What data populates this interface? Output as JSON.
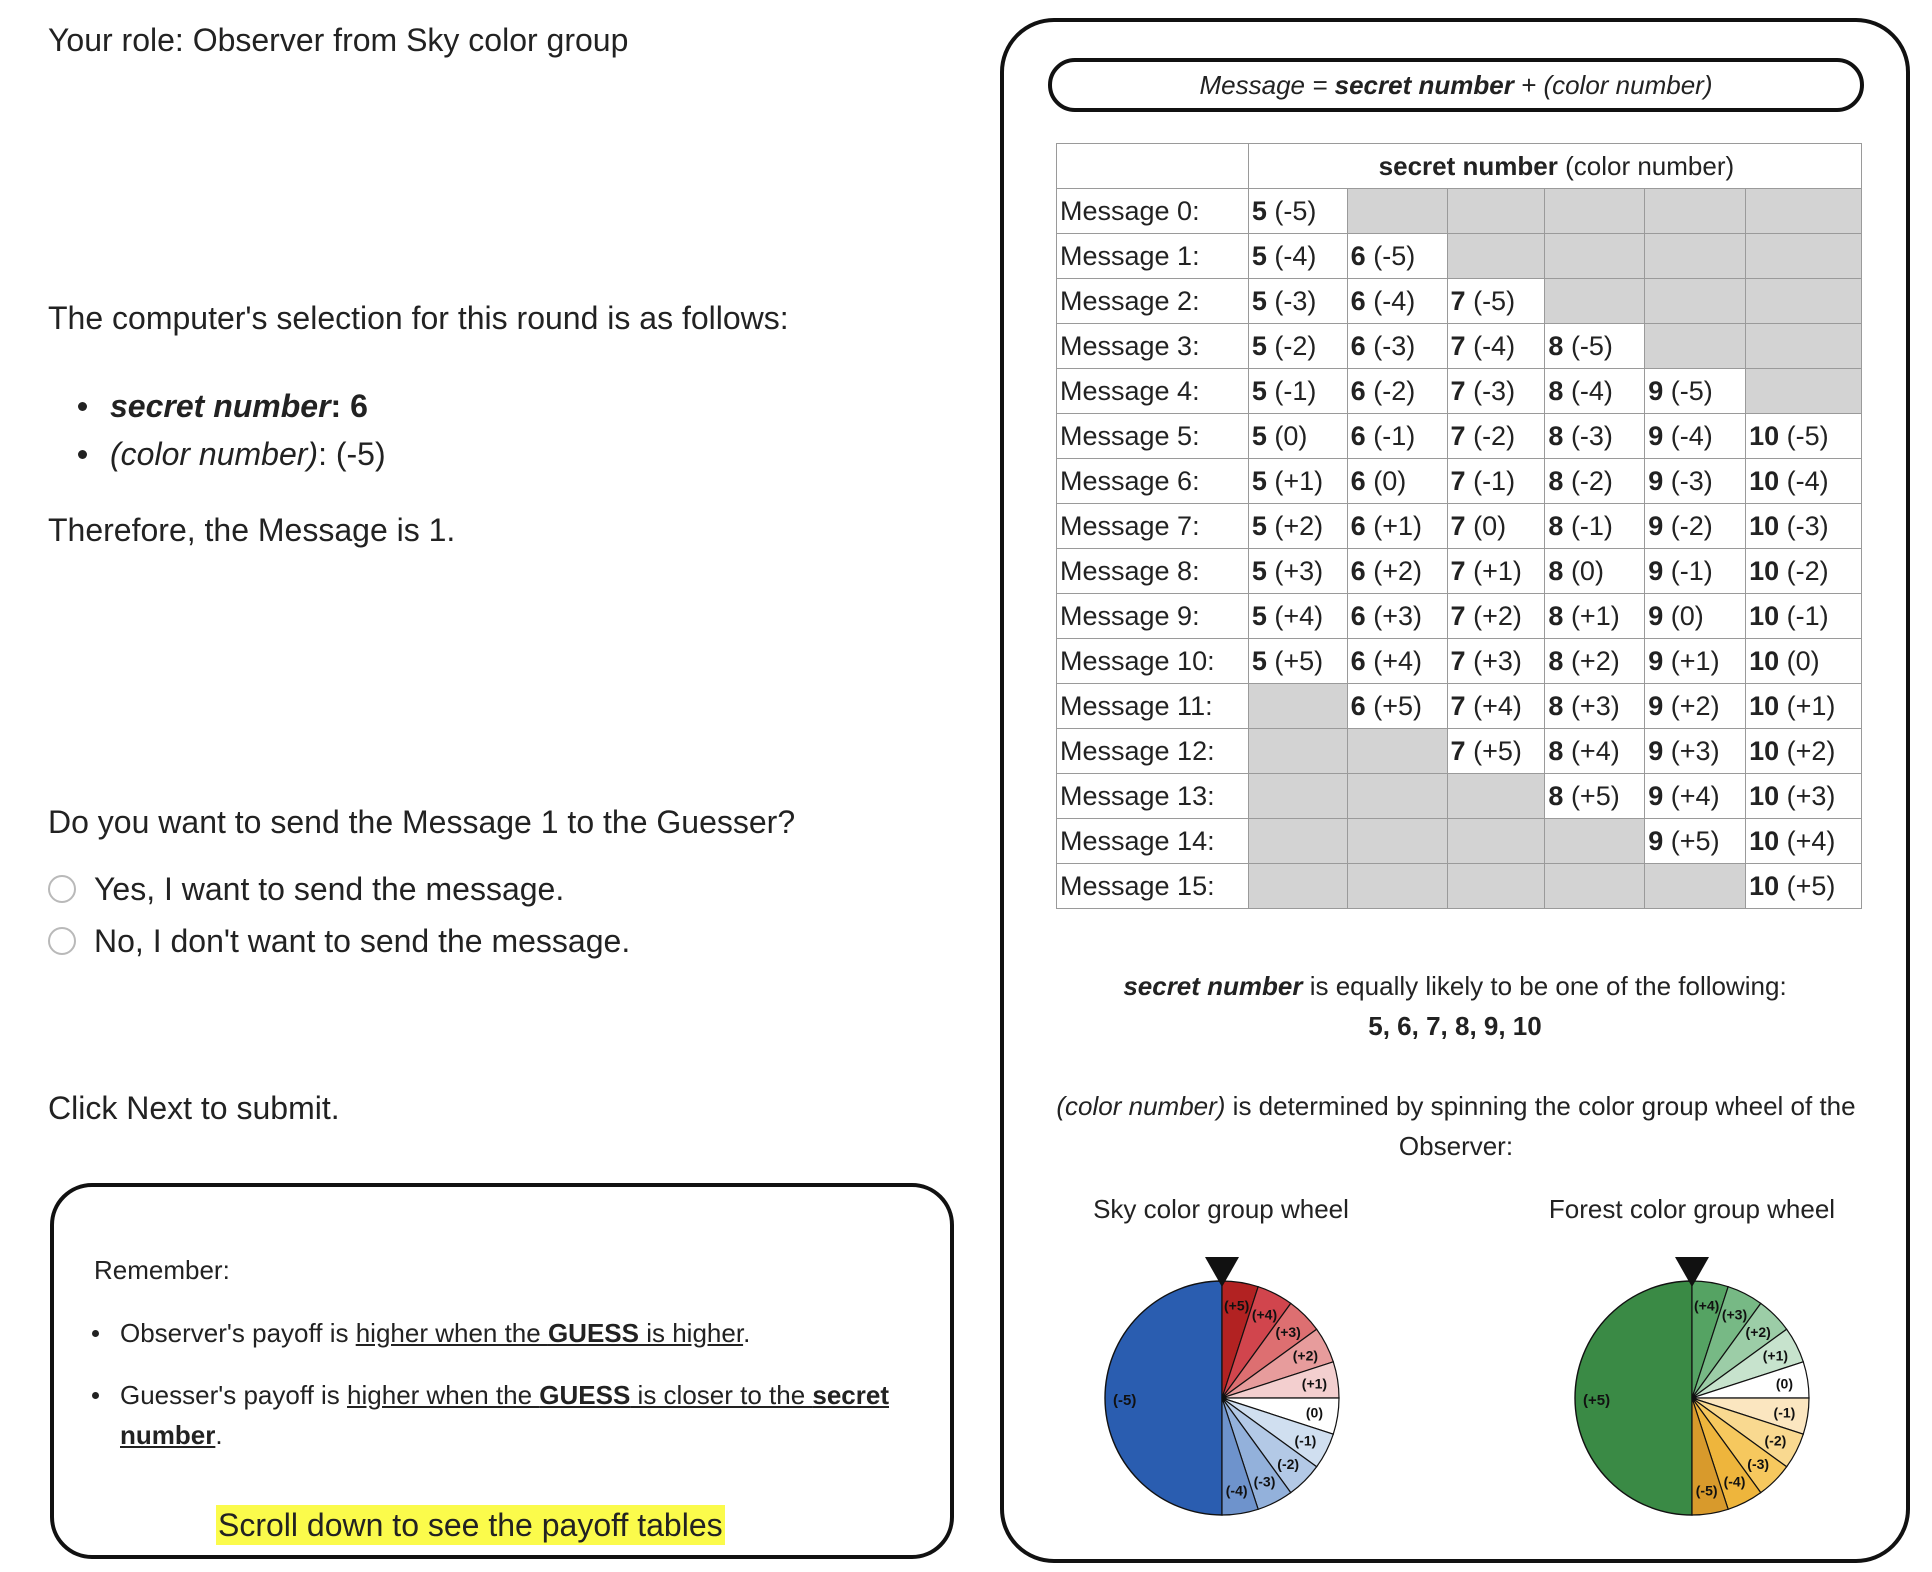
{
  "role_line": "Your role: Observer from Sky color group",
  "selection_intro": "The computer's selection for this round is as follows:",
  "selection": {
    "secret_label": "secret number",
    "secret_value": "6",
    "color_label": "(color number)",
    "color_value": "(-5)"
  },
  "therefore": "Therefore, the Message is 1.",
  "question": "Do you want to send the Message 1 to the Guesser?",
  "options": [
    "Yes, I want to send the message.",
    "No, I don't want to send the message."
  ],
  "submit_note": "Click Next to submit.",
  "remember": {
    "title": "Remember:",
    "observer_prefix": "Observer's payoff is ",
    "observer_link_1": "higher when the ",
    "observer_bold": "GUESS",
    "observer_link_2": " is higher",
    "observer_end": ".",
    "guesser_prefix": "Guesser's payoff is ",
    "guesser_link_1": "higher when the ",
    "guesser_bold_1": "GUESS",
    "guesser_link_2": " is closer to the ",
    "guesser_bold_2": "secret number",
    "guesser_end": ".",
    "scroll_hint": "Scroll down to see the payoff tables"
  },
  "formula": {
    "prefix": "Message = ",
    "bold": "secret number",
    "suffix": " + (color number)"
  },
  "table": {
    "header_bold": "secret number",
    "header_rest": " (color number)",
    "rows": [
      {
        "label": "Message 0:",
        "cells": [
          [
            "5",
            "(-5)"
          ],
          null,
          null,
          null,
          null,
          null
        ]
      },
      {
        "label": "Message 1:",
        "cells": [
          [
            "5",
            "(-4)"
          ],
          [
            "6",
            "(-5)"
          ],
          null,
          null,
          null,
          null
        ]
      },
      {
        "label": "Message 2:",
        "cells": [
          [
            "5",
            "(-3)"
          ],
          [
            "6",
            "(-4)"
          ],
          [
            "7",
            "(-5)"
          ],
          null,
          null,
          null
        ]
      },
      {
        "label": "Message 3:",
        "cells": [
          [
            "5",
            "(-2)"
          ],
          [
            "6",
            "(-3)"
          ],
          [
            "7",
            "(-4)"
          ],
          [
            "8",
            "(-5)"
          ],
          null,
          null
        ]
      },
      {
        "label": "Message 4:",
        "cells": [
          [
            "5",
            "(-1)"
          ],
          [
            "6",
            "(-2)"
          ],
          [
            "7",
            "(-3)"
          ],
          [
            "8",
            "(-4)"
          ],
          [
            "9",
            "(-5)"
          ],
          null
        ]
      },
      {
        "label": "Message 5:",
        "cells": [
          [
            "5",
            "(0)"
          ],
          [
            "6",
            "(-1)"
          ],
          [
            "7",
            "(-2)"
          ],
          [
            "8",
            "(-3)"
          ],
          [
            "9",
            "(-4)"
          ],
          [
            "10",
            "(-5)"
          ]
        ]
      },
      {
        "label": "Message 6:",
        "cells": [
          [
            "5",
            "(+1)"
          ],
          [
            "6",
            "(0)"
          ],
          [
            "7",
            "(-1)"
          ],
          [
            "8",
            "(-2)"
          ],
          [
            "9",
            "(-3)"
          ],
          [
            "10",
            "(-4)"
          ]
        ]
      },
      {
        "label": "Message 7:",
        "cells": [
          [
            "5",
            "(+2)"
          ],
          [
            "6",
            "(+1)"
          ],
          [
            "7",
            "(0)"
          ],
          [
            "8",
            "(-1)"
          ],
          [
            "9",
            "(-2)"
          ],
          [
            "10",
            "(-3)"
          ]
        ]
      },
      {
        "label": "Message 8:",
        "cells": [
          [
            "5",
            "(+3)"
          ],
          [
            "6",
            "(+2)"
          ],
          [
            "7",
            "(+1)"
          ],
          [
            "8",
            "(0)"
          ],
          [
            "9",
            "(-1)"
          ],
          [
            "10",
            "(-2)"
          ]
        ]
      },
      {
        "label": "Message 9:",
        "cells": [
          [
            "5",
            "(+4)"
          ],
          [
            "6",
            "(+3)"
          ],
          [
            "7",
            "(+2)"
          ],
          [
            "8",
            "(+1)"
          ],
          [
            "9",
            "(0)"
          ],
          [
            "10",
            "(-1)"
          ]
        ]
      },
      {
        "label": "Message 10:",
        "cells": [
          [
            "5",
            "(+5)"
          ],
          [
            "6",
            "(+4)"
          ],
          [
            "7",
            "(+3)"
          ],
          [
            "8",
            "(+2)"
          ],
          [
            "9",
            "(+1)"
          ],
          [
            "10",
            "(0)"
          ]
        ]
      },
      {
        "label": "Message 11:",
        "cells": [
          null,
          [
            "6",
            "(+5)"
          ],
          [
            "7",
            "(+4)"
          ],
          [
            "8",
            "(+3)"
          ],
          [
            "9",
            "(+2)"
          ],
          [
            "10",
            "(+1)"
          ]
        ]
      },
      {
        "label": "Message 12:",
        "cells": [
          null,
          null,
          [
            "7",
            "(+5)"
          ],
          [
            "8",
            "(+4)"
          ],
          [
            "9",
            "(+3)"
          ],
          [
            "10",
            "(+2)"
          ]
        ]
      },
      {
        "label": "Message 13:",
        "cells": [
          null,
          null,
          null,
          [
            "8",
            "(+5)"
          ],
          [
            "9",
            "(+4)"
          ],
          [
            "10",
            "(+3)"
          ]
        ]
      },
      {
        "label": "Message 14:",
        "cells": [
          null,
          null,
          null,
          null,
          [
            "9",
            "(+5)"
          ],
          [
            "10",
            "(+4)"
          ]
        ]
      },
      {
        "label": "Message 15:",
        "cells": [
          null,
          null,
          null,
          null,
          null,
          [
            "10",
            "(+5)"
          ]
        ]
      }
    ]
  },
  "likely": {
    "bold": "secret number",
    "rest": " is equally likely to be one of the following:",
    "values": "5, 6, 7, 8, 9, 10"
  },
  "color_note": {
    "italic": "(color number)",
    "rest": " is determined by spinning the color group wheel of the Observer:"
  },
  "wheels": [
    {
      "title": "Sky color group wheel",
      "big": {
        "label": "(-5)",
        "color": "#2a5db0"
      },
      "small": [
        {
          "label": "(+5)",
          "color": "#b22222"
        },
        {
          "label": "(+4)",
          "color": "#d1454d"
        },
        {
          "label": "(+3)",
          "color": "#dd6f71"
        },
        {
          "label": "(+2)",
          "color": "#e79c9c"
        },
        {
          "label": "(+1)",
          "color": "#f3cfcf"
        },
        {
          "label": "(0)",
          "color": "#ffffff"
        },
        {
          "label": "(-1)",
          "color": "#d0dff0"
        },
        {
          "label": "(-2)",
          "color": "#b3c9e6"
        },
        {
          "label": "(-3)",
          "color": "#93b1db"
        },
        {
          "label": "(-4)",
          "color": "#6e93cc"
        }
      ]
    },
    {
      "title": "Forest color group wheel",
      "big": {
        "label": "(+5)",
        "color": "#3a8a45"
      },
      "small": [
        {
          "label": "(+4)",
          "color": "#55a363"
        },
        {
          "label": "(+3)",
          "color": "#77b985"
        },
        {
          "label": "(+2)",
          "color": "#9ccda7"
        },
        {
          "label": "(+1)",
          "color": "#c7e3cd"
        },
        {
          "label": "(0)",
          "color": "#ffffff"
        },
        {
          "label": "(-1)",
          "color": "#fbe6c0"
        },
        {
          "label": "(-2)",
          "color": "#f9d990"
        },
        {
          "label": "(-3)",
          "color": "#f6c85e"
        },
        {
          "label": "(-4)",
          "color": "#eeb53c"
        },
        {
          "label": "(-5)",
          "color": "#d89a2c"
        }
      ]
    }
  ]
}
